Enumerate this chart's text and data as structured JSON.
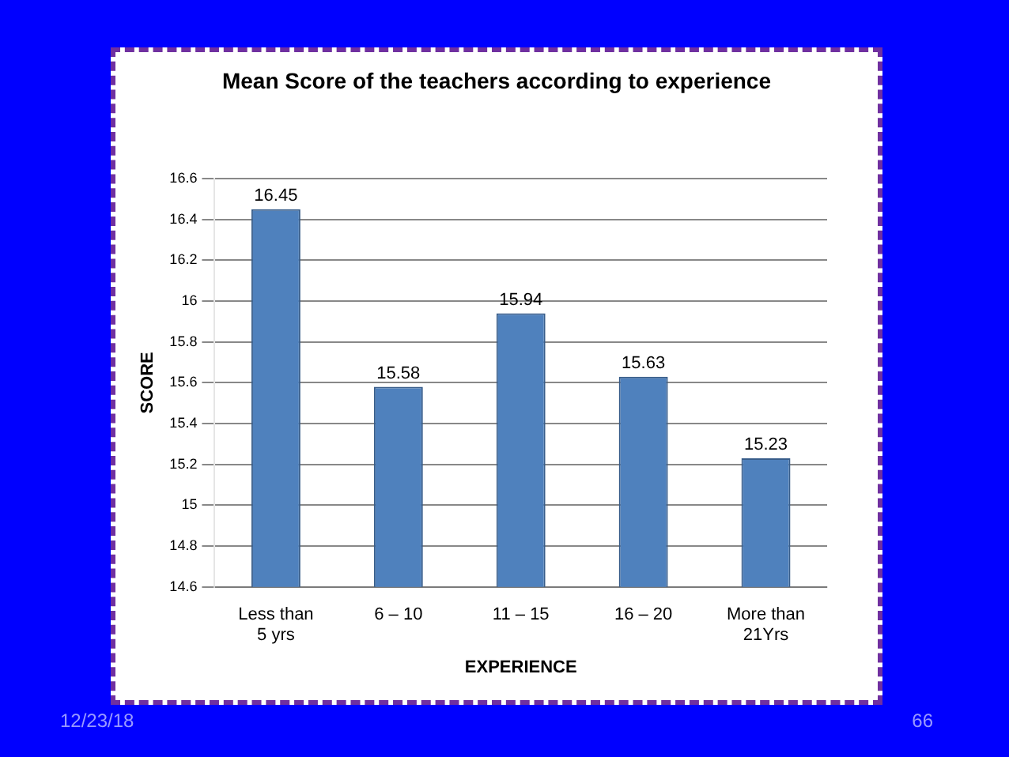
{
  "chart_data": {
    "type": "bar",
    "title": "Mean  Score of  the teachers according  to experience",
    "xlabel": "EXPERIENCE",
    "ylabel": "SCORE",
    "categories": [
      "Less than 5 yrs",
      "6 – 10",
      "11 – 15",
      "16 – 20",
      "More than 21Yrs"
    ],
    "values": [
      16.45,
      15.58,
      15.94,
      15.63,
      15.23
    ],
    "color": "#4f81bd",
    "ylim": [
      14.6,
      16.6
    ],
    "yticks": [
      14.6,
      14.8,
      15,
      15.2,
      15.4,
      15.6,
      15.8,
      16,
      16.2,
      16.4,
      16.6
    ],
    "grid": "y",
    "legend": false,
    "data_labels": true,
    "annotations": [
      "12/23/18",
      "66"
    ]
  }
}
